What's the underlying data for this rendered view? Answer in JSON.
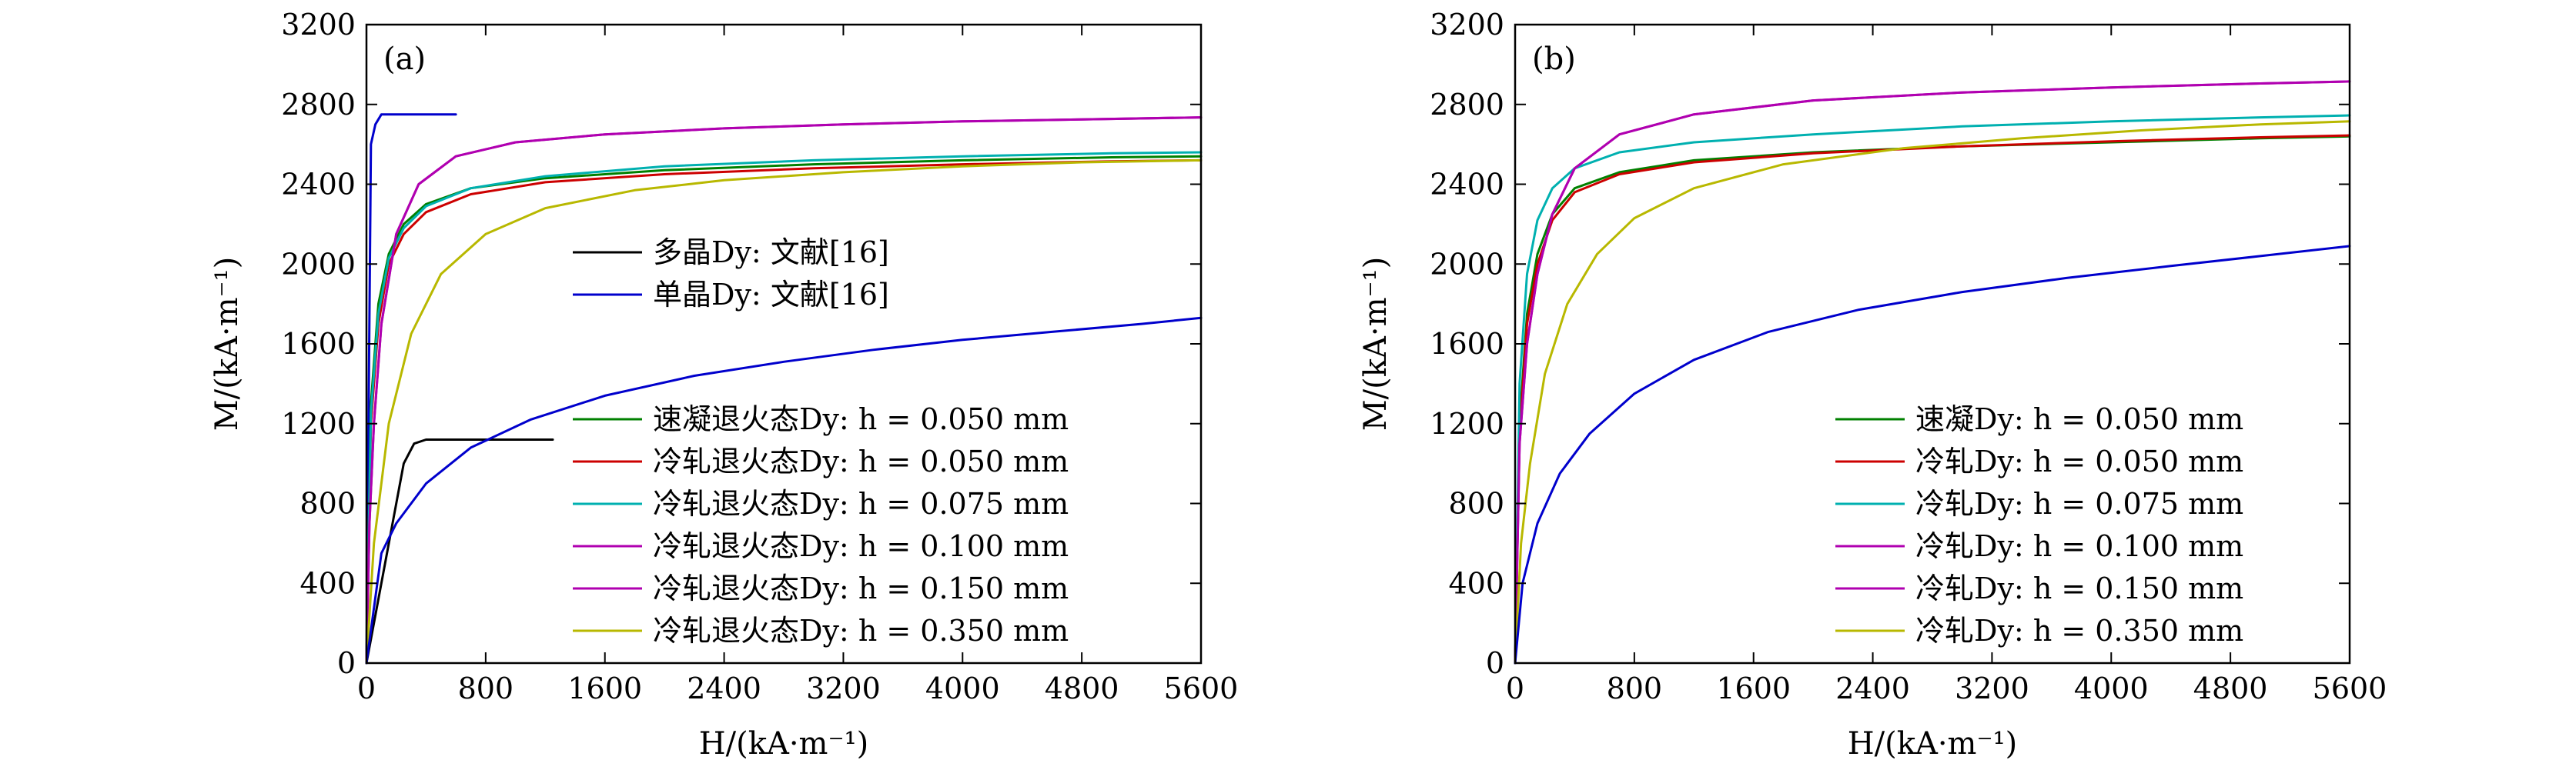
{
  "chart_data": [
    {
      "type": "line",
      "panel_label": "(a)",
      "xlabel_html": "H/(kA·m⁻¹)",
      "ylabel_html": "M/(kA·m⁻¹)",
      "xlim": [
        0,
        5600
      ],
      "ylim": [
        0,
        3200
      ],
      "xticks": [
        "0",
        "800",
        "1600",
        "2400",
        "3200",
        "4000",
        "4800",
        "5600"
      ],
      "yticks": [
        "0",
        "400",
        "800",
        "1200",
        "1600",
        "2000",
        "2400",
        "2800",
        "3200"
      ],
      "legend_groups": [
        {
          "placement": "upper-middle",
          "entries": [
            0,
            1
          ]
        },
        {
          "placement": "lower-right",
          "entries": [
            2,
            3,
            4,
            5,
            6,
            7
          ]
        }
      ],
      "series": [
        {
          "name": "多晶Dy: 文献[16]",
          "color": "#000000",
          "x": [
            0,
            250,
            320,
            400,
            1250
          ],
          "y": [
            0,
            1000,
            1100,
            1120,
            1120
          ]
        },
        {
          "name": "单晶Dy: 文献[16]",
          "color": "#0000cc",
          "x": [
            0,
            30,
            60,
            100,
            600
          ],
          "y": [
            0,
            2600,
            2700,
            2750,
            2750
          ]
        },
        {
          "name": "速凝退火态Dy: h = 0.050 mm",
          "color": "#008000",
          "x": [
            0,
            30,
            80,
            150,
            250,
            400,
            700,
            1200,
            2000,
            3000,
            4000,
            5000,
            5600
          ],
          "y": [
            0,
            1300,
            1800,
            2050,
            2200,
            2300,
            2380,
            2430,
            2470,
            2500,
            2520,
            2535,
            2540
          ]
        },
        {
          "name": "冷轧退火态Dy: h = 0.050 mm",
          "color": "#cc0000",
          "x": [
            0,
            30,
            80,
            150,
            250,
            400,
            700,
            1200,
            2000,
            3000,
            4000,
            5000,
            5600
          ],
          "y": [
            0,
            1200,
            1700,
            2000,
            2150,
            2260,
            2350,
            2410,
            2450,
            2480,
            2500,
            2515,
            2520
          ]
        },
        {
          "name": "冷轧退火态Dy: h = 0.075 mm",
          "color": "#00b0b0",
          "x": [
            0,
            30,
            80,
            150,
            250,
            400,
            700,
            1200,
            2000,
            3000,
            4000,
            5000,
            5600
          ],
          "y": [
            0,
            1250,
            1750,
            2030,
            2180,
            2290,
            2380,
            2440,
            2490,
            2520,
            2540,
            2555,
            2560
          ]
        },
        {
          "name": "冷轧退火态Dy: h = 0.100 mm",
          "color": "#b000b0",
          "x": [
            0,
            20,
            50,
            100,
            200,
            350,
            600,
            1000,
            1600,
            2400,
            3200,
            4000,
            4800,
            5600
          ],
          "y": [
            0,
            700,
            1200,
            1700,
            2150,
            2400,
            2540,
            2610,
            2650,
            2680,
            2700,
            2715,
            2725,
            2735
          ]
        },
        {
          "name": "冷轧退火态Dy: h = 0.150 mm",
          "color": "#b000b0",
          "x": [
            0,
            20,
            50,
            100,
            200,
            350,
            600,
            1000,
            1600,
            2400,
            3200,
            4000,
            4800,
            5600
          ],
          "y": [
            0,
            700,
            1200,
            1700,
            2150,
            2400,
            2540,
            2610,
            2650,
            2680,
            2700,
            2715,
            2725,
            2735
          ]
        },
        {
          "name": "冷轧退火态Dy: h = 0.350 mm",
          "color": "#b8b800",
          "x": [
            0,
            50,
            150,
            300,
            500,
            800,
            1200,
            1800,
            2400,
            3200,
            4000,
            4800,
            5600
          ],
          "y": [
            0,
            600,
            1200,
            1650,
            1950,
            2150,
            2280,
            2370,
            2420,
            2460,
            2490,
            2510,
            2520
          ]
        },
        {
          "name": "",
          "color": "#0000cc",
          "x": [
            0,
            100,
            200,
            400,
            700,
            1100,
            1600,
            2200,
            2800,
            3400,
            4000,
            4600,
            5200,
            5600
          ],
          "y": [
            0,
            550,
            700,
            900,
            1080,
            1220,
            1340,
            1440,
            1510,
            1570,
            1620,
            1660,
            1700,
            1730
          ]
        }
      ]
    },
    {
      "type": "line",
      "panel_label": "(b)",
      "xlabel_html": "H/(kA·m⁻¹)",
      "ylabel_html": "M/(kA·m⁻¹)",
      "xlim": [
        0,
        5600
      ],
      "ylim": [
        0,
        3200
      ],
      "xticks": [
        "0",
        "800",
        "1600",
        "2400",
        "3200",
        "4000",
        "4800",
        "5600"
      ],
      "yticks": [
        "0",
        "400",
        "800",
        "1200",
        "1600",
        "2000",
        "2400",
        "2800",
        "3200"
      ],
      "legend_groups": [
        {
          "placement": "lower-right",
          "entries": [
            0,
            1,
            2,
            3,
            4,
            5
          ]
        }
      ],
      "series": [
        {
          "name": "速凝Dy: h = 0.050 mm",
          "color": "#008000",
          "x": [
            0,
            30,
            80,
            150,
            250,
            400,
            700,
            1200,
            2000,
            3000,
            4000,
            5000,
            5600
          ],
          "y": [
            0,
            1200,
            1750,
            2050,
            2250,
            2380,
            2460,
            2520,
            2560,
            2590,
            2610,
            2630,
            2640
          ]
        },
        {
          "name": "冷轧Dy: h = 0.050 mm",
          "color": "#cc0000",
          "x": [
            0,
            30,
            80,
            150,
            250,
            400,
            700,
            1200,
            2000,
            3000,
            4000,
            5000,
            5600
          ],
          "y": [
            0,
            1150,
            1700,
            2000,
            2220,
            2360,
            2450,
            2510,
            2555,
            2590,
            2615,
            2635,
            2645
          ]
        },
        {
          "name": "冷轧Dy: h = 0.075 mm",
          "color": "#00b0b0",
          "x": [
            0,
            30,
            80,
            150,
            250,
            400,
            700,
            1200,
            2000,
            3000,
            4000,
            5000,
            5600
          ],
          "y": [
            0,
            1400,
            1950,
            2220,
            2380,
            2480,
            2560,
            2610,
            2650,
            2690,
            2715,
            2735,
            2745
          ]
        },
        {
          "name": "冷轧Dy: h = 0.100 mm",
          "color": "#b000b0",
          "x": [
            0,
            30,
            80,
            150,
            250,
            400,
            700,
            1200,
            2000,
            3000,
            4000,
            5000,
            5600
          ],
          "y": [
            0,
            1100,
            1600,
            1950,
            2250,
            2480,
            2650,
            2750,
            2820,
            2860,
            2885,
            2905,
            2915
          ]
        },
        {
          "name": "冷轧Dy: h = 0.150 mm",
          "color": "#b000b0",
          "x": [
            0,
            30,
            80,
            150,
            250,
            400,
            700,
            1200,
            2000,
            3000,
            4000,
            5000,
            5600
          ],
          "y": [
            0,
            1100,
            1600,
            1950,
            2250,
            2480,
            2650,
            2750,
            2820,
            2860,
            2885,
            2905,
            2915
          ]
        },
        {
          "name": "冷轧Dy: h = 0.350 mm",
          "color": "#b8b800",
          "x": [
            0,
            40,
            100,
            200,
            350,
            550,
            800,
            1200,
            1800,
            2600,
            3400,
            4200,
            5000,
            5600
          ],
          "y": [
            0,
            600,
            1000,
            1450,
            1800,
            2050,
            2230,
            2380,
            2500,
            2580,
            2630,
            2670,
            2700,
            2715
          ]
        },
        {
          "name": "",
          "color": "#0000cc",
          "x": [
            0,
            50,
            150,
            300,
            500,
            800,
            1200,
            1700,
            2300,
            3000,
            3700,
            4400,
            5000,
            5600
          ],
          "y": [
            0,
            400,
            700,
            950,
            1150,
            1350,
            1520,
            1660,
            1770,
            1860,
            1930,
            1990,
            2040,
            2090
          ]
        }
      ]
    }
  ]
}
